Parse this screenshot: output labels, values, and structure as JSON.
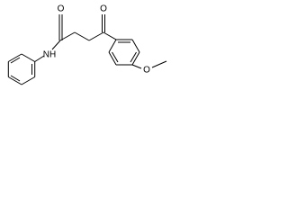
{
  "atoms": [
    {
      "label": "O"
    },
    {
      "label": "O"
    },
    {
      "label": "NH"
    },
    {
      "label": "O"
    }
  ]
}
